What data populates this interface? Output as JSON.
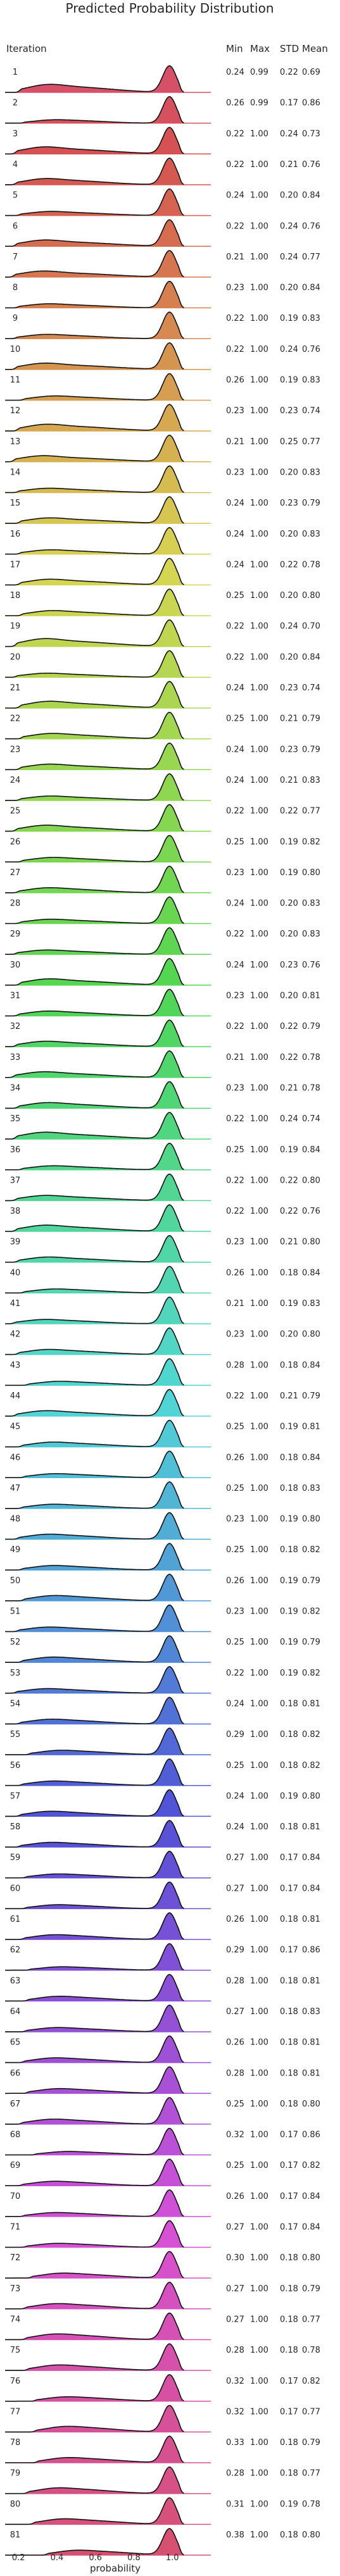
{
  "chart_data": {
    "type": "ridgeline",
    "title": "Predicted Probability Distribution",
    "xlabel": "probability",
    "ylabel": "Iteration",
    "xlim": [
      0.13,
      1.2
    ],
    "x_ticks": [
      0.2,
      0.4,
      0.6,
      0.8,
      1.0
    ],
    "x_tick_labels": [
      "0.2",
      "0.4",
      "0.6",
      "0.8",
      "1.0"
    ],
    "columns": [
      "Min",
      "Max",
      "STD",
      "Mean"
    ],
    "palette": "husl",
    "rows": [
      {
        "iteration": "1",
        "min": "0.24",
        "max": "0.99",
        "std": "0.22",
        "mean": "0.69"
      },
      {
        "iteration": "2",
        "min": "0.26",
        "max": "0.99",
        "std": "0.17",
        "mean": "0.86"
      },
      {
        "iteration": "3",
        "min": "0.22",
        "max": "1.00",
        "std": "0.24",
        "mean": "0.73"
      },
      {
        "iteration": "4",
        "min": "0.22",
        "max": "1.00",
        "std": "0.21",
        "mean": "0.76"
      },
      {
        "iteration": "5",
        "min": "0.24",
        "max": "1.00",
        "std": "0.20",
        "mean": "0.84"
      },
      {
        "iteration": "6",
        "min": "0.22",
        "max": "1.00",
        "std": "0.24",
        "mean": "0.76"
      },
      {
        "iteration": "7",
        "min": "0.21",
        "max": "1.00",
        "std": "0.24",
        "mean": "0.77"
      },
      {
        "iteration": "8",
        "min": "0.23",
        "max": "1.00",
        "std": "0.20",
        "mean": "0.84"
      },
      {
        "iteration": "9",
        "min": "0.22",
        "max": "1.00",
        "std": "0.19",
        "mean": "0.83"
      },
      {
        "iteration": "10",
        "min": "0.22",
        "max": "1.00",
        "std": "0.24",
        "mean": "0.76"
      },
      {
        "iteration": "11",
        "min": "0.26",
        "max": "1.00",
        "std": "0.19",
        "mean": "0.83"
      },
      {
        "iteration": "12",
        "min": "0.23",
        "max": "1.00",
        "std": "0.23",
        "mean": "0.74"
      },
      {
        "iteration": "13",
        "min": "0.21",
        "max": "1.00",
        "std": "0.25",
        "mean": "0.77"
      },
      {
        "iteration": "14",
        "min": "0.23",
        "max": "1.00",
        "std": "0.20",
        "mean": "0.83"
      },
      {
        "iteration": "15",
        "min": "0.24",
        "max": "1.00",
        "std": "0.23",
        "mean": "0.79"
      },
      {
        "iteration": "16",
        "min": "0.24",
        "max": "1.00",
        "std": "0.20",
        "mean": "0.83"
      },
      {
        "iteration": "17",
        "min": "0.24",
        "max": "1.00",
        "std": "0.22",
        "mean": "0.78"
      },
      {
        "iteration": "18",
        "min": "0.25",
        "max": "1.00",
        "std": "0.20",
        "mean": "0.80"
      },
      {
        "iteration": "19",
        "min": "0.22",
        "max": "1.00",
        "std": "0.24",
        "mean": "0.70"
      },
      {
        "iteration": "20",
        "min": "0.22",
        "max": "1.00",
        "std": "0.20",
        "mean": "0.84"
      },
      {
        "iteration": "21",
        "min": "0.24",
        "max": "1.00",
        "std": "0.23",
        "mean": "0.74"
      },
      {
        "iteration": "22",
        "min": "0.25",
        "max": "1.00",
        "std": "0.21",
        "mean": "0.79"
      },
      {
        "iteration": "23",
        "min": "0.24",
        "max": "1.00",
        "std": "0.23",
        "mean": "0.79"
      },
      {
        "iteration": "24",
        "min": "0.24",
        "max": "1.00",
        "std": "0.21",
        "mean": "0.83"
      },
      {
        "iteration": "25",
        "min": "0.22",
        "max": "1.00",
        "std": "0.22",
        "mean": "0.77"
      },
      {
        "iteration": "26",
        "min": "0.25",
        "max": "1.00",
        "std": "0.19",
        "mean": "0.82"
      },
      {
        "iteration": "27",
        "min": "0.23",
        "max": "1.00",
        "std": "0.19",
        "mean": "0.80"
      },
      {
        "iteration": "28",
        "min": "0.24",
        "max": "1.00",
        "std": "0.20",
        "mean": "0.83"
      },
      {
        "iteration": "29",
        "min": "0.22",
        "max": "1.00",
        "std": "0.20",
        "mean": "0.83"
      },
      {
        "iteration": "30",
        "min": "0.24",
        "max": "1.00",
        "std": "0.23",
        "mean": "0.76"
      },
      {
        "iteration": "31",
        "min": "0.23",
        "max": "1.00",
        "std": "0.20",
        "mean": "0.81"
      },
      {
        "iteration": "32",
        "min": "0.22",
        "max": "1.00",
        "std": "0.22",
        "mean": "0.79"
      },
      {
        "iteration": "33",
        "min": "0.21",
        "max": "1.00",
        "std": "0.22",
        "mean": "0.78"
      },
      {
        "iteration": "34",
        "min": "0.23",
        "max": "1.00",
        "std": "0.21",
        "mean": "0.78"
      },
      {
        "iteration": "35",
        "min": "0.22",
        "max": "1.00",
        "std": "0.24",
        "mean": "0.74"
      },
      {
        "iteration": "36",
        "min": "0.25",
        "max": "1.00",
        "std": "0.19",
        "mean": "0.84"
      },
      {
        "iteration": "37",
        "min": "0.22",
        "max": "1.00",
        "std": "0.22",
        "mean": "0.80"
      },
      {
        "iteration": "38",
        "min": "0.22",
        "max": "1.00",
        "std": "0.22",
        "mean": "0.76"
      },
      {
        "iteration": "39",
        "min": "0.23",
        "max": "1.00",
        "std": "0.21",
        "mean": "0.80"
      },
      {
        "iteration": "40",
        "min": "0.26",
        "max": "1.00",
        "std": "0.18",
        "mean": "0.84"
      },
      {
        "iteration": "41",
        "min": "0.21",
        "max": "1.00",
        "std": "0.19",
        "mean": "0.83"
      },
      {
        "iteration": "42",
        "min": "0.23",
        "max": "1.00",
        "std": "0.20",
        "mean": "0.80"
      },
      {
        "iteration": "43",
        "min": "0.28",
        "max": "1.00",
        "std": "0.18",
        "mean": "0.84"
      },
      {
        "iteration": "44",
        "min": "0.22",
        "max": "1.00",
        "std": "0.21",
        "mean": "0.79"
      },
      {
        "iteration": "45",
        "min": "0.25",
        "max": "1.00",
        "std": "0.19",
        "mean": "0.81"
      },
      {
        "iteration": "46",
        "min": "0.26",
        "max": "1.00",
        "std": "0.18",
        "mean": "0.84"
      },
      {
        "iteration": "47",
        "min": "0.25",
        "max": "1.00",
        "std": "0.18",
        "mean": "0.83"
      },
      {
        "iteration": "48",
        "min": "0.23",
        "max": "1.00",
        "std": "0.19",
        "mean": "0.80"
      },
      {
        "iteration": "49",
        "min": "0.25",
        "max": "1.00",
        "std": "0.18",
        "mean": "0.82"
      },
      {
        "iteration": "50",
        "min": "0.26",
        "max": "1.00",
        "std": "0.19",
        "mean": "0.79"
      },
      {
        "iteration": "51",
        "min": "0.23",
        "max": "1.00",
        "std": "0.19",
        "mean": "0.82"
      },
      {
        "iteration": "52",
        "min": "0.25",
        "max": "1.00",
        "std": "0.19",
        "mean": "0.79"
      },
      {
        "iteration": "53",
        "min": "0.22",
        "max": "1.00",
        "std": "0.19",
        "mean": "0.82"
      },
      {
        "iteration": "54",
        "min": "0.24",
        "max": "1.00",
        "std": "0.18",
        "mean": "0.81"
      },
      {
        "iteration": "55",
        "min": "0.29",
        "max": "1.00",
        "std": "0.18",
        "mean": "0.82"
      },
      {
        "iteration": "56",
        "min": "0.25",
        "max": "1.00",
        "std": "0.18",
        "mean": "0.82"
      },
      {
        "iteration": "57",
        "min": "0.24",
        "max": "1.00",
        "std": "0.19",
        "mean": "0.80"
      },
      {
        "iteration": "58",
        "min": "0.24",
        "max": "1.00",
        "std": "0.18",
        "mean": "0.81"
      },
      {
        "iteration": "59",
        "min": "0.27",
        "max": "1.00",
        "std": "0.17",
        "mean": "0.84"
      },
      {
        "iteration": "60",
        "min": "0.27",
        "max": "1.00",
        "std": "0.17",
        "mean": "0.84"
      },
      {
        "iteration": "61",
        "min": "0.26",
        "max": "1.00",
        "std": "0.18",
        "mean": "0.81"
      },
      {
        "iteration": "62",
        "min": "0.29",
        "max": "1.00",
        "std": "0.17",
        "mean": "0.86"
      },
      {
        "iteration": "63",
        "min": "0.28",
        "max": "1.00",
        "std": "0.18",
        "mean": "0.81"
      },
      {
        "iteration": "64",
        "min": "0.27",
        "max": "1.00",
        "std": "0.18",
        "mean": "0.83"
      },
      {
        "iteration": "65",
        "min": "0.26",
        "max": "1.00",
        "std": "0.18",
        "mean": "0.81"
      },
      {
        "iteration": "66",
        "min": "0.28",
        "max": "1.00",
        "std": "0.18",
        "mean": "0.81"
      },
      {
        "iteration": "67",
        "min": "0.25",
        "max": "1.00",
        "std": "0.18",
        "mean": "0.80"
      },
      {
        "iteration": "68",
        "min": "0.32",
        "max": "1.00",
        "std": "0.17",
        "mean": "0.86"
      },
      {
        "iteration": "69",
        "min": "0.25",
        "max": "1.00",
        "std": "0.17",
        "mean": "0.82"
      },
      {
        "iteration": "70",
        "min": "0.26",
        "max": "1.00",
        "std": "0.17",
        "mean": "0.84"
      },
      {
        "iteration": "71",
        "min": "0.27",
        "max": "1.00",
        "std": "0.17",
        "mean": "0.84"
      },
      {
        "iteration": "72",
        "min": "0.30",
        "max": "1.00",
        "std": "0.18",
        "mean": "0.80"
      },
      {
        "iteration": "73",
        "min": "0.27",
        "max": "1.00",
        "std": "0.18",
        "mean": "0.79"
      },
      {
        "iteration": "74",
        "min": "0.27",
        "max": "1.00",
        "std": "0.18",
        "mean": "0.77"
      },
      {
        "iteration": "75",
        "min": "0.28",
        "max": "1.00",
        "std": "0.18",
        "mean": "0.78"
      },
      {
        "iteration": "76",
        "min": "0.32",
        "max": "1.00",
        "std": "0.17",
        "mean": "0.82"
      },
      {
        "iteration": "77",
        "min": "0.32",
        "max": "1.00",
        "std": "0.17",
        "mean": "0.77"
      },
      {
        "iteration": "78",
        "min": "0.33",
        "max": "1.00",
        "std": "0.18",
        "mean": "0.79"
      },
      {
        "iteration": "79",
        "min": "0.28",
        "max": "1.00",
        "std": "0.18",
        "mean": "0.77"
      },
      {
        "iteration": "80",
        "min": "0.31",
        "max": "1.00",
        "std": "0.19",
        "mean": "0.78"
      },
      {
        "iteration": "81",
        "min": "0.38",
        "max": "1.00",
        "std": "0.18",
        "mean": "0.80"
      }
    ]
  }
}
